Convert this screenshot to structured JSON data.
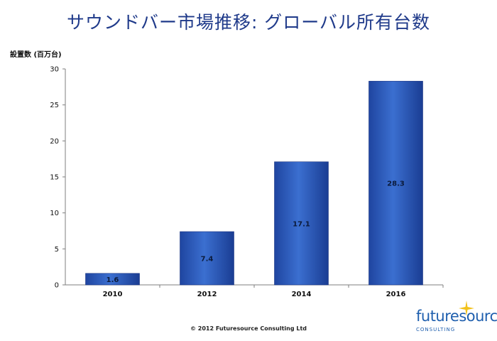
{
  "chart_data": {
    "type": "bar",
    "title": "サウンドバー市場推移: グローバル所有台数",
    "ylabel": "設置数 (百万台)",
    "xlabel": "",
    "categories": [
      "2010",
      "2012",
      "2014",
      "2016"
    ],
    "values": [
      1.6,
      7.4,
      17.1,
      28.3
    ],
    "data_labels": [
      "1.6",
      "7.4",
      "17.1",
      "28.3"
    ],
    "ylim": [
      0,
      30
    ],
    "yticks": [
      0,
      5,
      10,
      15,
      20,
      25,
      30
    ],
    "grid": false,
    "legend": "none",
    "bar_color": "#2f5fbf"
  },
  "footer": "© 2012 Futuresource Consulting Ltd",
  "logo": {
    "word": "futuresource",
    "sub": "CONSULTING",
    "accent_color": "#f2c21b",
    "brand_color": "#1f5fae",
    "icon": "star-burst-icon"
  }
}
